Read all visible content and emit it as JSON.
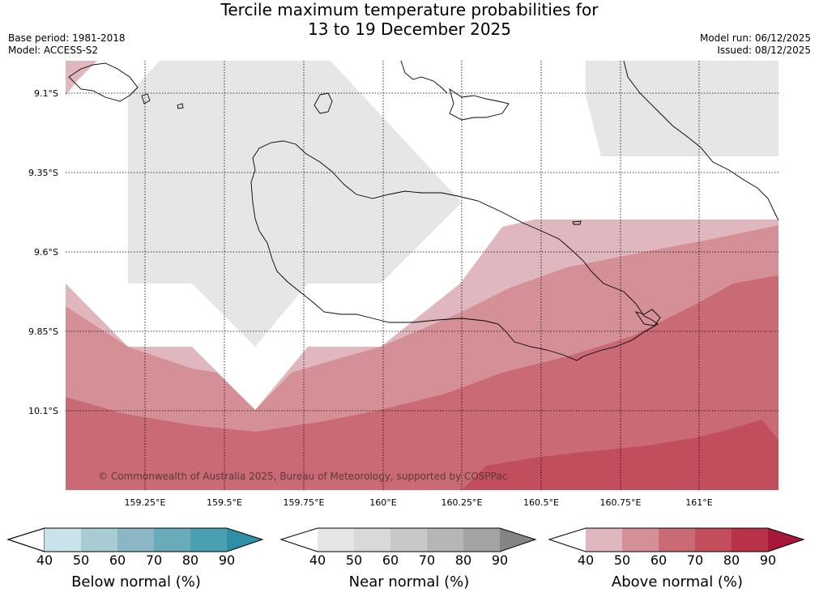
{
  "header": {
    "title_line1": "Tercile maximum temperature probabilities for",
    "title_line2": "13 to 19 December 2025",
    "base_period": "Base period: 1981-2018",
    "model": "Model: ACCESS-S2",
    "model_run": "Model run: 06/12/2025",
    "issued": "Issued: 08/12/2025"
  },
  "map": {
    "lat_labels": [
      "9.1°S",
      "9.35°S",
      "9.6°S",
      "9.85°S",
      "10.1°S"
    ],
    "lon_labels": [
      "159.25°E",
      "159.5°E",
      "159.75°E",
      "160°E",
      "160.25°E",
      "160.5°E",
      "160.75°E",
      "161°E"
    ],
    "copyright": "© Commonwealth of Australia 2025, Bureau of Meteorology, supported by COSPPac",
    "colors": {
      "near_50": "#e6e6e6",
      "above_50": "#e0b7be",
      "above_60": "#d58f97",
      "above_70": "#c96a74",
      "above_80": "#c24d5c",
      "coast": "#000000"
    }
  },
  "legends": [
    {
      "caption": "Below normal (%)",
      "ticks": [
        "40",
        "50",
        "60",
        "70",
        "80",
        "90"
      ],
      "colors": [
        "#c9e3ea",
        "#a9ccd4",
        "#8bb7c4",
        "#6aabba",
        "#4aa0b2",
        "#2f8fa6"
      ]
    },
    {
      "caption": "Near normal (%)",
      "ticks": [
        "40",
        "50",
        "60",
        "70",
        "80",
        "90"
      ],
      "colors": [
        "#e6e6e6",
        "#d9d9d9",
        "#c8c8c8",
        "#b6b6b6",
        "#a3a3a3",
        "#858585"
      ]
    },
    {
      "caption": "Above normal (%)",
      "ticks": [
        "40",
        "50",
        "60",
        "70",
        "80",
        "90"
      ],
      "colors": [
        "#e0b7be",
        "#d58f97",
        "#c96a74",
        "#c24d5c",
        "#b8324a",
        "#a8163a"
      ]
    }
  ]
}
